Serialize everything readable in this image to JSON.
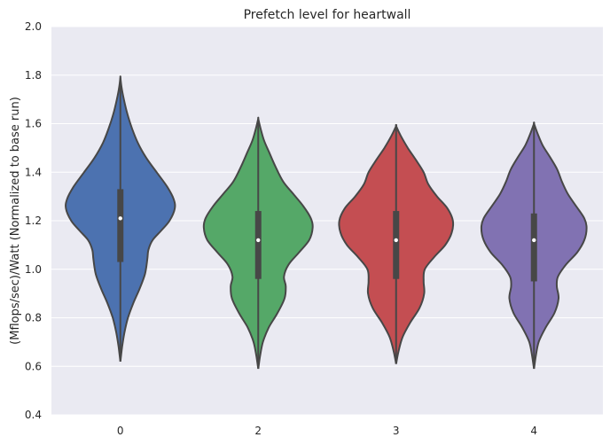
{
  "chart_data": {
    "type": "violin",
    "title": "Prefetch level for heartwall",
    "xlabel": "",
    "ylabel": "(Mflops/sec)/Watt (Normalized to base run)",
    "ylim": [
      0.4,
      2.0
    ],
    "yticks": [
      "0.4",
      "0.6",
      "0.8",
      "1.0",
      "1.2",
      "1.4",
      "1.6",
      "1.8",
      "2.0"
    ],
    "grid": true,
    "categories": [
      "0",
      "2",
      "3",
      "4"
    ],
    "colors": [
      "#4c72b0",
      "#55a868",
      "#c44e52",
      "#8172b2"
    ],
    "violins": [
      {
        "category": "0",
        "min": 0.62,
        "max": 1.79,
        "q1": 1.03,
        "median": 1.21,
        "q3": 1.33,
        "density": [
          [
            0.62,
            0.0
          ],
          [
            0.68,
            0.03
          ],
          [
            0.74,
            0.07
          ],
          [
            0.8,
            0.13
          ],
          [
            0.86,
            0.22
          ],
          [
            0.92,
            0.33
          ],
          [
            0.98,
            0.42
          ],
          [
            1.04,
            0.46
          ],
          [
            1.08,
            0.48
          ],
          [
            1.12,
            0.55
          ],
          [
            1.16,
            0.7
          ],
          [
            1.2,
            0.84
          ],
          [
            1.25,
            0.93
          ],
          [
            1.29,
            0.91
          ],
          [
            1.34,
            0.8
          ],
          [
            1.4,
            0.62
          ],
          [
            1.46,
            0.44
          ],
          [
            1.52,
            0.3
          ],
          [
            1.58,
            0.2
          ],
          [
            1.64,
            0.12
          ],
          [
            1.7,
            0.06
          ],
          [
            1.75,
            0.02
          ],
          [
            1.79,
            0.0
          ]
        ]
      },
      {
        "category": "2",
        "min": 0.59,
        "max": 1.62,
        "q1": 0.96,
        "median": 1.12,
        "q3": 1.24,
        "density": [
          [
            0.59,
            0.0
          ],
          [
            0.64,
            0.03
          ],
          [
            0.7,
            0.08
          ],
          [
            0.76,
            0.18
          ],
          [
            0.82,
            0.33
          ],
          [
            0.88,
            0.45
          ],
          [
            0.93,
            0.47
          ],
          [
            0.97,
            0.44
          ],
          [
            1.02,
            0.52
          ],
          [
            1.07,
            0.7
          ],
          [
            1.12,
            0.87
          ],
          [
            1.17,
            0.93
          ],
          [
            1.21,
            0.9
          ],
          [
            1.26,
            0.77
          ],
          [
            1.31,
            0.6
          ],
          [
            1.36,
            0.43
          ],
          [
            1.42,
            0.3
          ],
          [
            1.48,
            0.19
          ],
          [
            1.53,
            0.1
          ],
          [
            1.58,
            0.04
          ],
          [
            1.62,
            0.0
          ]
        ]
      },
      {
        "category": "3",
        "min": 0.61,
        "max": 1.59,
        "q1": 0.96,
        "median": 1.12,
        "q3": 1.24,
        "density": [
          [
            0.61,
            0.0
          ],
          [
            0.66,
            0.04
          ],
          [
            0.72,
            0.11
          ],
          [
            0.78,
            0.24
          ],
          [
            0.84,
            0.4
          ],
          [
            0.9,
            0.48
          ],
          [
            0.95,
            0.47
          ],
          [
            1.0,
            0.49
          ],
          [
            1.05,
            0.65
          ],
          [
            1.1,
            0.84
          ],
          [
            1.15,
            0.95
          ],
          [
            1.2,
            0.97
          ],
          [
            1.25,
            0.88
          ],
          [
            1.3,
            0.7
          ],
          [
            1.35,
            0.55
          ],
          [
            1.4,
            0.47
          ],
          [
            1.45,
            0.34
          ],
          [
            1.5,
            0.2
          ],
          [
            1.55,
            0.08
          ],
          [
            1.59,
            0.0
          ]
        ]
      },
      {
        "category": "4",
        "min": 0.59,
        "max": 1.6,
        "q1": 0.95,
        "median": 1.12,
        "q3": 1.23,
        "density": [
          [
            0.59,
            0.0
          ],
          [
            0.64,
            0.03
          ],
          [
            0.7,
            0.08
          ],
          [
            0.76,
            0.2
          ],
          [
            0.82,
            0.35
          ],
          [
            0.88,
            0.42
          ],
          [
            0.93,
            0.39
          ],
          [
            0.97,
            0.41
          ],
          [
            1.02,
            0.55
          ],
          [
            1.07,
            0.74
          ],
          [
            1.12,
            0.86
          ],
          [
            1.17,
            0.9
          ],
          [
            1.21,
            0.86
          ],
          [
            1.26,
            0.72
          ],
          [
            1.31,
            0.58
          ],
          [
            1.36,
            0.48
          ],
          [
            1.41,
            0.4
          ],
          [
            1.46,
            0.28
          ],
          [
            1.51,
            0.15
          ],
          [
            1.56,
            0.06
          ],
          [
            1.6,
            0.0
          ]
        ]
      }
    ]
  }
}
